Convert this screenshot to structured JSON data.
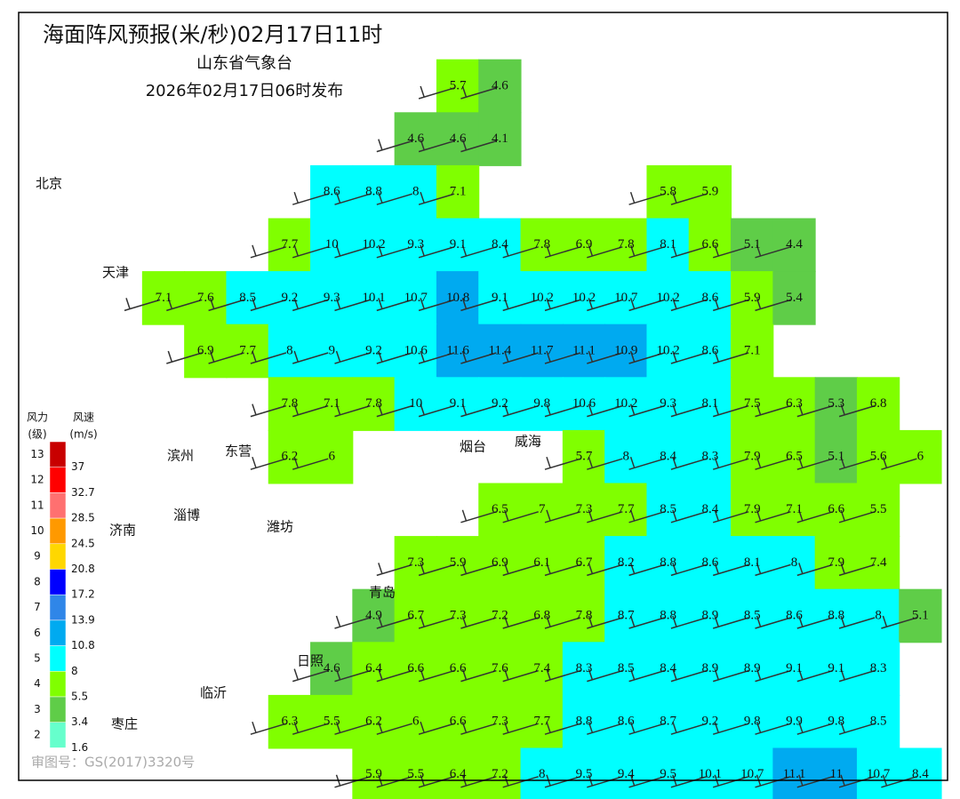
{
  "header": {
    "title": "海面阵风预报(米/秒)02月17日11时",
    "issuer": "山东省气象台",
    "issued": "2026年02月17日06时发布"
  },
  "cities": [
    "北京",
    "天津",
    "滨州",
    "东营",
    "烟台",
    "威海",
    "淄博",
    "济南",
    "潍坊",
    "青岛",
    "日照",
    "临沂",
    "枣庄"
  ],
  "footer": "审图号：GS(2017)3320号",
  "legend": {
    "level_title": "风力",
    "level_unit": "(级)",
    "speed_title": "风速",
    "speed_unit": "(m/s)",
    "levels": [
      13,
      12,
      11,
      10,
      9,
      8,
      7,
      6,
      5,
      4,
      3,
      2
    ],
    "speeds": [
      37,
      32.7,
      28.5,
      24.5,
      20.8,
      17.2,
      13.9,
      10.8,
      8,
      5.5,
      3.4,
      1.6
    ],
    "colors": [
      "#c80000",
      "#ff0000",
      "#ff7070",
      "#ff9900",
      "#ffd700",
      "#0000ff",
      "#2f86e8",
      "#00aaf0",
      "#00ffff",
      "#80ff00",
      "#5fcd48",
      "#66ffcc"
    ]
  },
  "grid": {
    "rows": [
      [
        null,
        null,
        null,
        null,
        null,
        null,
        null,
        5.7,
        4.6,
        null,
        null,
        null,
        null,
        null,
        null,
        null,
        null,
        null,
        null
      ],
      [
        null,
        null,
        null,
        null,
        null,
        null,
        4.6,
        4.6,
        4.1,
        null,
        null,
        null,
        null,
        null,
        null,
        null,
        null,
        null,
        null
      ],
      [
        null,
        null,
        null,
        null,
        8.6,
        8.8,
        8.0,
        7.1,
        null,
        null,
        null,
        null,
        5.8,
        5.9,
        null,
        null,
        null,
        null,
        null
      ],
      [
        null,
        null,
        null,
        7.7,
        10.0,
        10.2,
        9.3,
        9.1,
        8.4,
        7.8,
        6.9,
        7.8,
        8.1,
        6.6,
        5.1,
        4.4,
        null,
        null,
        null
      ],
      [
        7.1,
        7.6,
        8.5,
        9.2,
        9.3,
        10.1,
        10.7,
        10.8,
        9.1,
        10.2,
        10.2,
        10.7,
        10.2,
        8.6,
        5.9,
        5.4,
        null,
        null,
        null
      ],
      [
        null,
        6.9,
        7.7,
        8.0,
        9.0,
        9.2,
        10.6,
        11.6,
        11.4,
        11.7,
        11.1,
        10.9,
        10.2,
        8.6,
        7.1,
        null,
        null,
        null,
        null
      ],
      [
        null,
        null,
        null,
        7.8,
        7.1,
        7.8,
        10.0,
        9.1,
        9.2,
        9.8,
        10.6,
        10.2,
        9.3,
        8.1,
        7.5,
        6.3,
        5.3,
        6.8,
        null
      ],
      [
        null,
        null,
        null,
        6.2,
        6.0,
        null,
        null,
        null,
        null,
        null,
        5.7,
        8.0,
        8.4,
        8.3,
        7.9,
        6.5,
        5.1,
        5.6,
        6.0
      ],
      [
        null,
        null,
        null,
        null,
        null,
        null,
        null,
        null,
        6.5,
        7.0,
        7.3,
        7.7,
        8.5,
        8.4,
        7.9,
        7.1,
        6.6,
        5.5,
        null
      ],
      [
        null,
        null,
        null,
        null,
        null,
        null,
        7.3,
        5.9,
        6.9,
        6.1,
        6.7,
        8.2,
        8.8,
        8.6,
        8.1,
        8.0,
        7.9,
        7.4,
        null
      ],
      [
        null,
        null,
        null,
        null,
        null,
        4.9,
        6.7,
        7.3,
        7.2,
        6.8,
        7.8,
        8.7,
        8.8,
        8.9,
        8.5,
        8.6,
        8.8,
        8.0,
        5.1
      ],
      [
        null,
        null,
        null,
        null,
        4.6,
        6.4,
        6.6,
        6.6,
        7.6,
        7.4,
        8.3,
        8.5,
        8.4,
        8.9,
        8.9,
        9.1,
        9.1,
        8.3,
        null
      ],
      [
        null,
        null,
        null,
        6.3,
        5.5,
        6.2,
        6.0,
        6.6,
        7.3,
        7.7,
        8.8,
        8.6,
        8.7,
        9.2,
        9.8,
        9.9,
        9.8,
        8.5,
        null
      ],
      [
        null,
        null,
        null,
        null,
        null,
        5.9,
        5.5,
        6.4,
        7.2,
        8.0,
        9.5,
        9.4,
        9.5,
        10.1,
        10.7,
        11.1,
        11.0,
        10.7,
        8.4
      ]
    ]
  }
}
